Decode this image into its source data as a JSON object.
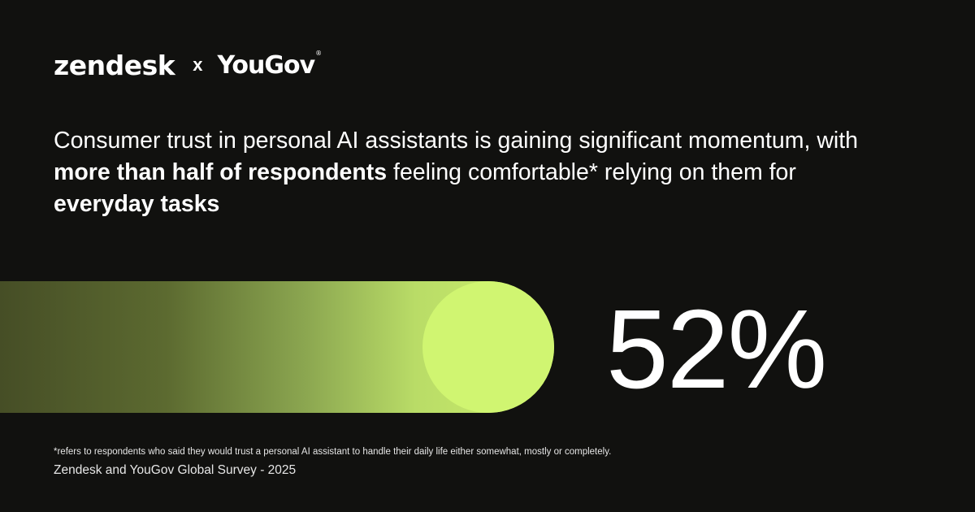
{
  "logos": {
    "zendesk": "zendesk",
    "separator": "x",
    "yougov": "YouGov",
    "yougov_mark": "®"
  },
  "headline": {
    "part1": "Consumer trust in personal AI assistants is gaining significant momentum, with ",
    "bold1": "more than half of respondents",
    "part2": " feeling comfortable* relying on them for ",
    "bold2": "everyday tasks"
  },
  "stat": {
    "value_label": "52%",
    "fraction": 0.52
  },
  "colors": {
    "background": "#11110f",
    "bar_start": "#464e26",
    "bar_end": "#d0f571"
  },
  "footnote": "*refers to respondents who said they would trust a personal AI assistant to handle their daily life either somewhat, mostly or completely.",
  "source": "Zendesk and YouGov Global Survey - 2025"
}
